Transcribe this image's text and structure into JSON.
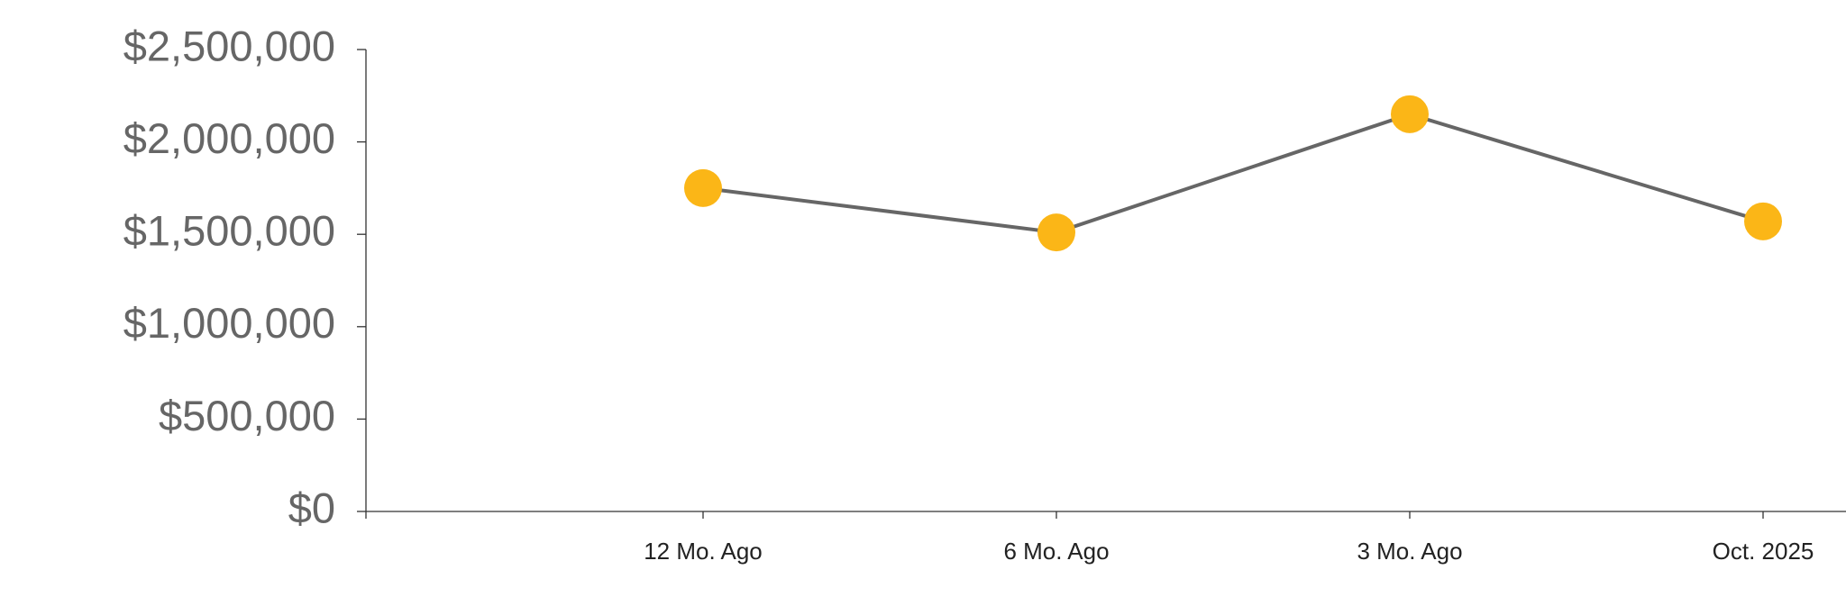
{
  "chart_data": {
    "type": "line",
    "categories": [
      "12 Mo. Ago",
      "6 Mo. Ago",
      "3 Mo. Ago",
      "Oct. 2025"
    ],
    "values": [
      1750000,
      1510000,
      2150000,
      1570000
    ],
    "color": "#666666",
    "marker_color": "#fbb617",
    "ylim": [
      0,
      2500000
    ],
    "yticks": [
      {
        "value": 0,
        "label": "$0"
      },
      {
        "value": 500000,
        "label": "$500,000"
      },
      {
        "value": 1000000,
        "label": "$1,000,000"
      },
      {
        "value": 1500000,
        "label": "$1,500,000"
      },
      {
        "value": 2000000,
        "label": "$2,000,000"
      },
      {
        "value": 2500000,
        "label": "$2,500,000"
      }
    ],
    "grid": false
  }
}
